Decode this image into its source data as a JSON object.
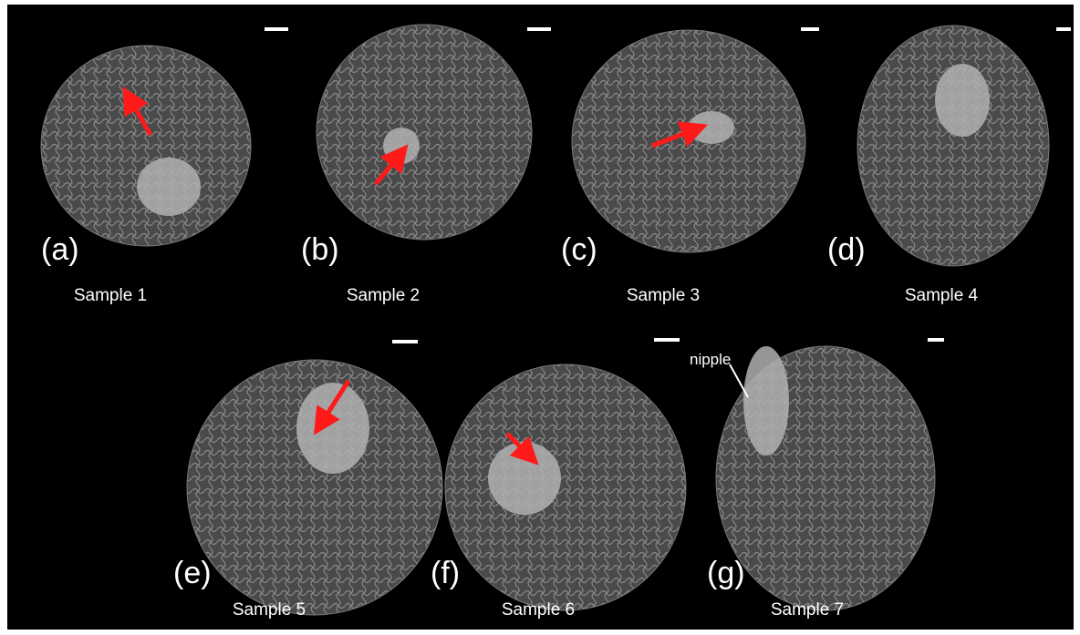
{
  "panels": [
    {
      "label": "(a)",
      "caption": "Sample 1"
    },
    {
      "label": "(b)",
      "caption": "Sample 2"
    },
    {
      "label": "(c)",
      "caption": "Sample 3"
    },
    {
      "label": "(d)",
      "caption": "Sample 4"
    },
    {
      "label": "(e)",
      "caption": "Sample 5"
    },
    {
      "label": "(f)",
      "caption": "Sample 6"
    },
    {
      "label": "(g)",
      "caption": "Sample 7"
    }
  ],
  "annotation": "nipple"
}
